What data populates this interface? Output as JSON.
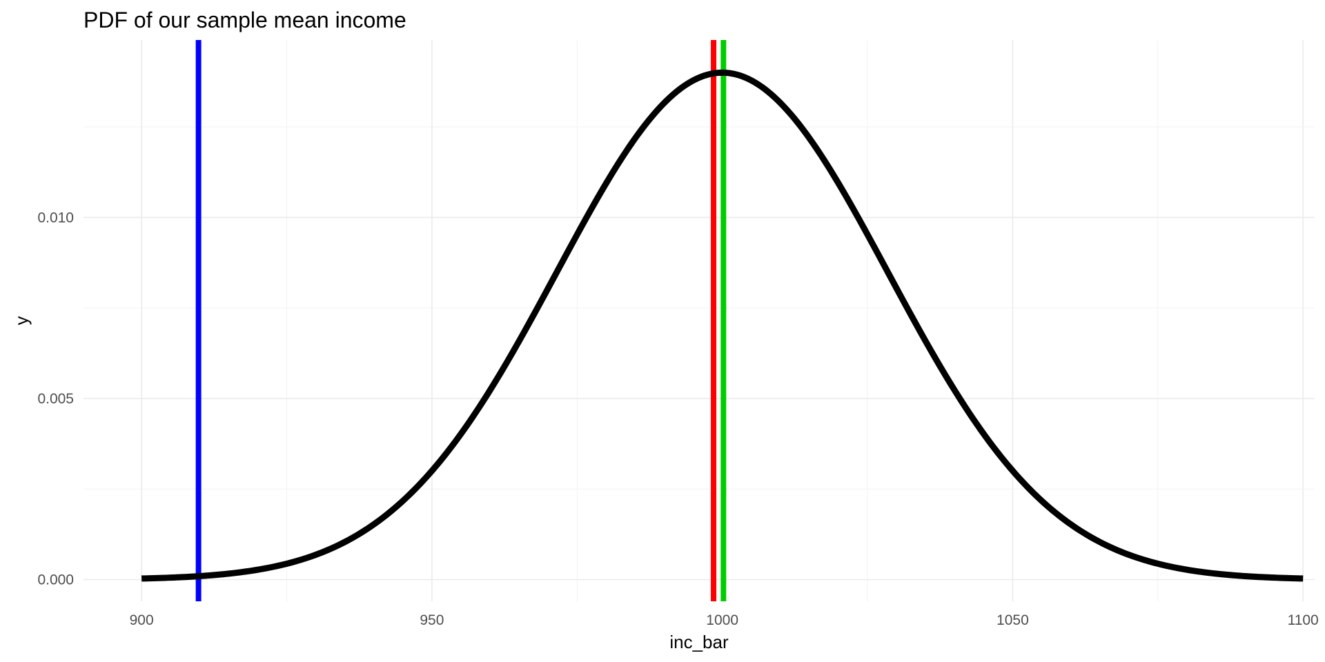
{
  "chart_data": {
    "type": "line",
    "title": "PDF of our sample mean income",
    "xlabel": "inc_bar",
    "ylabel": "y",
    "xlim": [
      890,
      1102
    ],
    "ylim": [
      -0.0006,
      0.0149
    ],
    "x_ticks": [
      900,
      950,
      1000,
      1050,
      1100
    ],
    "x_tick_labels": [
      "900",
      "950",
      "1000",
      "1050",
      "1100"
    ],
    "x_minor_ticks": [
      925,
      975,
      1025,
      1075
    ],
    "y_ticks": [
      0.0,
      0.005,
      0.01
    ],
    "y_tick_labels": [
      "0.000",
      "0.005",
      "0.010"
    ],
    "y_minor_ticks": [
      0.0025,
      0.0075,
      0.0125
    ],
    "grid": true,
    "curve": {
      "distribution": "normal",
      "mean": 1000,
      "sd": 28.5,
      "x_range": [
        900,
        1100
      ],
      "color": "#000000"
    },
    "vlines": [
      {
        "x": 909.8,
        "color": "#0000ff"
      },
      {
        "x": 998.5,
        "color": "#ff0000"
      },
      {
        "x": 1000.2,
        "color": "#00cd00"
      }
    ]
  }
}
